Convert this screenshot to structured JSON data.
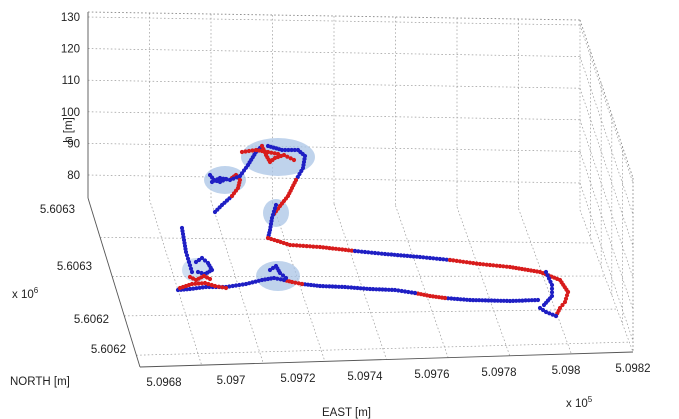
{
  "chart_data": {
    "type": "scatter",
    "projection": "3d",
    "grid": true,
    "xlabel": "EAST [m]",
    "ylabel": "NORTH [m]",
    "zlabel": "h [m]",
    "x_multiplier": "x 10",
    "x_multiplier_exp": "5",
    "y_multiplier": "x 10",
    "y_multiplier_exp": "6",
    "x_ticks": [
      "5.0968",
      "5.097",
      "5.0972",
      "5.0974",
      "5.0976",
      "5.0978",
      "5.098",
      "5.0982"
    ],
    "y_ticks": [
      "5.6062",
      "5.6062",
      "5.6063",
      "5.6063"
    ],
    "z_ticks": [
      "80",
      "90",
      "100",
      "110",
      "120",
      "130"
    ],
    "xlim": [
      5.0967,
      5.0982
    ],
    "ylim": [
      5.6062,
      5.60635
    ],
    "zlim": [
      75,
      130
    ],
    "colors": {
      "series_a": "#1f1fc4",
      "series_b": "#d81c1c",
      "highlight": "#aac4e6"
    },
    "highlight_count": 5
  }
}
